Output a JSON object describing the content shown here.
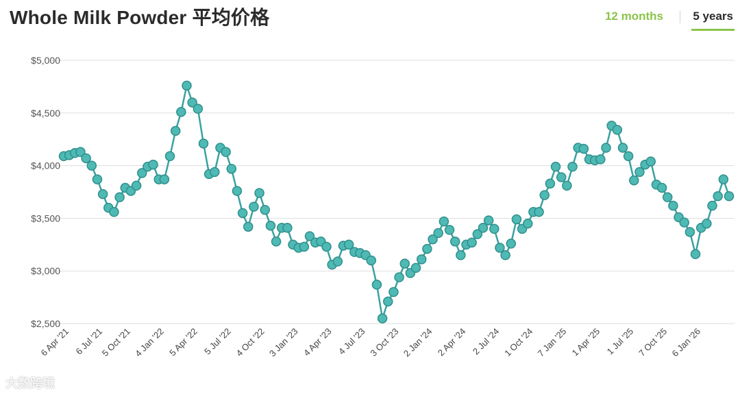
{
  "header": {
    "title": "Whole Milk Powder 平均价格",
    "tabs": [
      {
        "label": "12 months",
        "active": false
      },
      {
        "label": "5 years",
        "active": true
      }
    ]
  },
  "watermark": "大数跨境",
  "colors": {
    "line": "#3aa1a0",
    "point_fill": "#4fb9b4",
    "grid": "#dedede",
    "tab_active_underline": "#8bc34a",
    "tab_inactive": "#8bc34a"
  },
  "chart_data": {
    "type": "line",
    "ylim": [
      2500,
      5000
    ],
    "yticks": [
      2500,
      3000,
      3500,
      4000,
      4500,
      5000
    ],
    "ytick_labels": [
      "$2,500",
      "$3,000",
      "$3,500",
      "$4,000",
      "$4,500",
      "$5,000"
    ],
    "xticks": [
      {
        "index": 0,
        "label": "6 Apr '21"
      },
      {
        "index": 6,
        "label": "6 Jul '21"
      },
      {
        "index": 11,
        "label": "5 Oct '21"
      },
      {
        "index": 17,
        "label": "4 Jan '22"
      },
      {
        "index": 23,
        "label": "5 Apr '22"
      },
      {
        "index": 29,
        "label": "5 Jul '22"
      },
      {
        "index": 35,
        "label": "4 Oct '22"
      },
      {
        "index": 41,
        "label": "3 Jan '23"
      },
      {
        "index": 47,
        "label": "4 Apr '23"
      },
      {
        "index": 53,
        "label": "4 Jul '23"
      },
      {
        "index": 59,
        "label": "3 Oct '23"
      },
      {
        "index": 65,
        "label": "2 Jan '24"
      },
      {
        "index": 71,
        "label": "2 Apr '24"
      },
      {
        "index": 77,
        "label": "2 Jul '24"
      },
      {
        "index": 83,
        "label": "1 Oct '24"
      },
      {
        "index": 89,
        "label": "7 Jan '25"
      },
      {
        "index": 95,
        "label": "1 Apr '25"
      },
      {
        "index": 101,
        "label": "1 Jul '25"
      },
      {
        "index": 107,
        "label": "7 Oct '25"
      },
      {
        "index": 113,
        "label": "6 Jan '26"
      }
    ],
    "series": [
      {
        "values": [
          4090,
          4100,
          4120,
          4130,
          4070,
          4000,
          3870,
          3730,
          3600,
          3560,
          3700,
          3790,
          3760,
          3810,
          3930,
          3990,
          4010,
          3870,
          3870,
          4090,
          4330,
          4510,
          4760,
          4600,
          4540,
          4210,
          3920,
          3940,
          4170,
          4130,
          3970,
          3760,
          3550,
          3420,
          3610,
          3740,
          3580,
          3430,
          3280,
          3410,
          3410,
          3250,
          3220,
          3230,
          3330,
          3270,
          3280,
          3230,
          3060,
          3090,
          3240,
          3250,
          3180,
          3170,
          3150,
          3100,
          2870,
          2550,
          2710,
          2800,
          2940,
          3070,
          2980,
          3030,
          3110,
          3210,
          3300,
          3360,
          3470,
          3390,
          3280,
          3150,
          3250,
          3270,
          3350,
          3410,
          3480,
          3400,
          3220,
          3150,
          3260,
          3490,
          3400,
          3450,
          3560,
          3560,
          3720,
          3830,
          3990,
          3890,
          3810,
          3990,
          4170,
          4160,
          4060,
          4050,
          4060,
          4170,
          4380,
          4340,
          4170,
          4090,
          3860,
          3940,
          4010,
          4040,
          3820,
          3790,
          3700,
          3620,
          3510,
          3460,
          3370,
          3160,
          3410,
          3450,
          3620,
          3710,
          3870,
          3710
        ]
      }
    ]
  }
}
